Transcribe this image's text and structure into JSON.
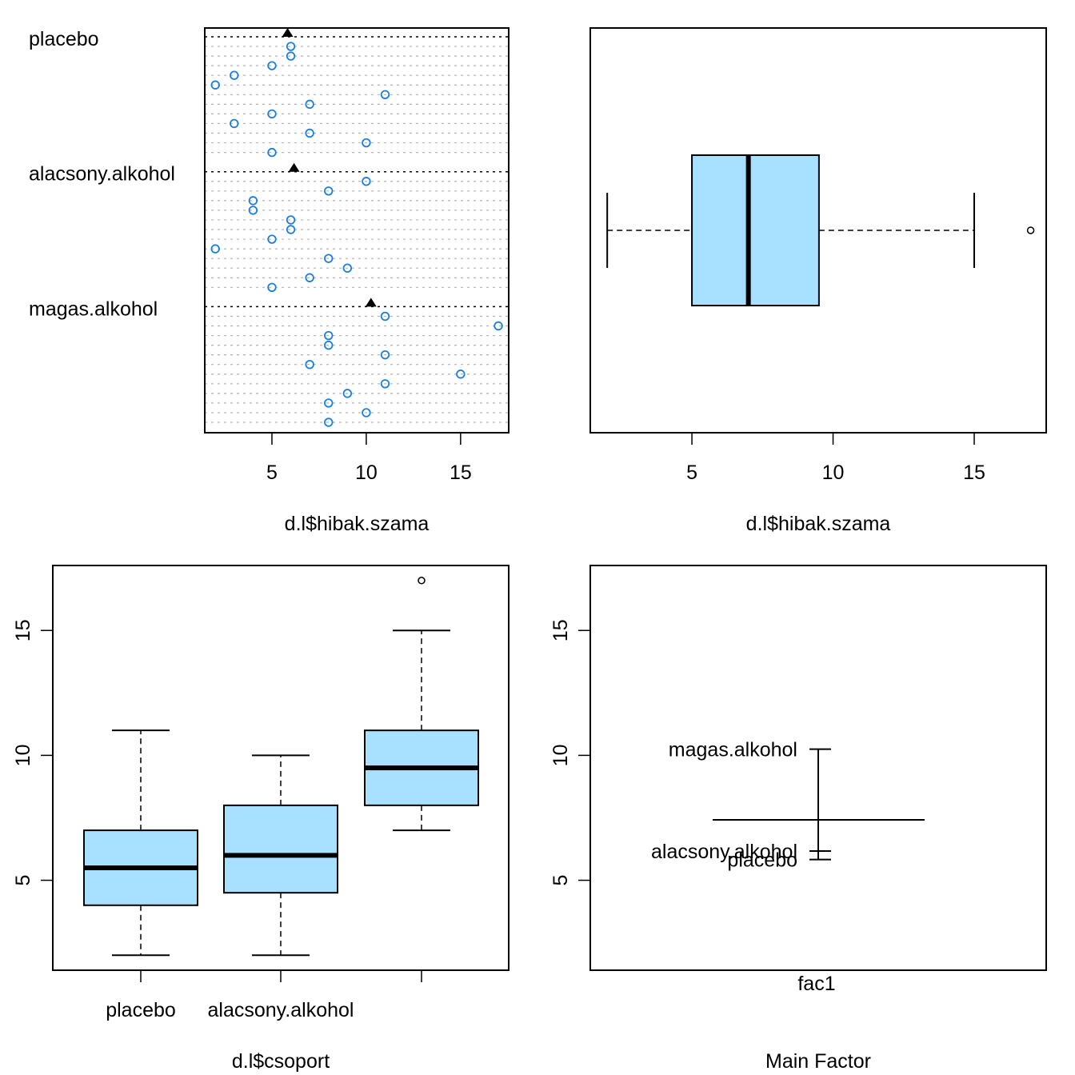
{
  "chart_data": [
    {
      "type": "scatter",
      "subtype": "dotchart",
      "xlabel": "d.l$hibak.szama",
      "xticks": [
        5,
        10,
        15
      ],
      "xlim": [
        1.44,
        17.55
      ],
      "group_labels": [
        "placebo",
        "alacsony.alkohol",
        "magas.alkohol"
      ],
      "point_color": "#1a7fe0",
      "mean_marker_color": "#000000",
      "groups": [
        {
          "name": "placebo",
          "mean": 5.83,
          "values": [
            6,
            6,
            5,
            3,
            2,
            11,
            7,
            5,
            3,
            7,
            10,
            5
          ]
        },
        {
          "name": "alacsony.alkohol",
          "mean": 6.17,
          "values": [
            10,
            8,
            4,
            4,
            6,
            6,
            5,
            2,
            8,
            9,
            7,
            5
          ]
        },
        {
          "name": "magas.alkohol",
          "mean": 10.25,
          "values": [
            11,
            17,
            8,
            8,
            11,
            7,
            15,
            11,
            9,
            8,
            10,
            8
          ]
        }
      ]
    },
    {
      "type": "boxplot",
      "orientation": "horizontal",
      "xlabel": "d.l$hibak.szama",
      "xticks": [
        5,
        10,
        15
      ],
      "xlim": [
        1.4,
        17.55
      ],
      "fill": "#a8e0ff",
      "box": {
        "min": 2,
        "q1": 5,
        "median": 7,
        "q3": 9.5,
        "max": 15,
        "outliers": [
          17
        ]
      }
    },
    {
      "type": "boxplot",
      "orientation": "vertical",
      "xlabel": "d.l$csoport",
      "yticks": [
        5,
        10,
        15
      ],
      "ylim": [
        1.4,
        17.6
      ],
      "fill": "#a8e0ff",
      "categories": [
        "placebo",
        "alacsony.alkohol",
        "magas.alkohol"
      ],
      "visible_category_labels": [
        "placebo",
        "alacsony.alkohol",
        ""
      ],
      "boxes": [
        {
          "min": 2,
          "q1": 4,
          "median": 5.5,
          "q3": 7,
          "max": 11,
          "outliers": []
        },
        {
          "min": 2,
          "q1": 4.5,
          "median": 6,
          "q3": 8,
          "max": 10,
          "outliers": []
        },
        {
          "min": 7,
          "q1": 8,
          "median": 9.5,
          "q3": 11,
          "max": 15,
          "outliers": [
            17
          ]
        }
      ]
    },
    {
      "type": "design_plot",
      "title": "Main Factor",
      "xlabel": "fac1",
      "yticks": [
        5,
        10,
        15
      ],
      "ylim": [
        1.4,
        17.6
      ],
      "grand_mean": 7.42,
      "levels": [
        {
          "name": "magas.alkohol",
          "mean": 10.25
        },
        {
          "name": "alacsony.alkohol",
          "mean": 6.17
        },
        {
          "name": "placebo",
          "mean": 5.83
        }
      ]
    }
  ]
}
